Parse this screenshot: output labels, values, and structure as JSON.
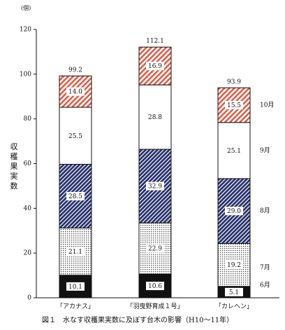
{
  "chart_data": {
    "type": "bar",
    "stacked": true,
    "categories": [
      "「アカナス」",
      "「羽曳野育成１号」",
      "「カレヘン」"
    ],
    "series": [
      {
        "name": "6月",
        "values": [
          10.1,
          10.6,
          5.1
        ],
        "pattern": "solid-black"
      },
      {
        "name": "7月",
        "values": [
          21.1,
          22.9,
          19.2
        ],
        "pattern": "fine-dots"
      },
      {
        "name": "8月",
        "values": [
          28.5,
          32.9,
          29.0
        ],
        "pattern": "dense-diagonal-navy"
      },
      {
        "name": "9月",
        "values": [
          25.5,
          28.8,
          25.1
        ],
        "pattern": "white"
      },
      {
        "name": "10月",
        "values": [
          14.0,
          16.9,
          15.5
        ],
        "pattern": "diagonal-red"
      }
    ],
    "totals": [
      "99.2",
      "112.1",
      "93.9"
    ],
    "segment_labels": [
      [
        "10.1",
        "21.1",
        "28.5",
        "25.5",
        "14.0"
      ],
      [
        "10.6",
        "22.9",
        "32.9",
        "28.8",
        "16.9"
      ],
      [
        "5.1",
        "19.2",
        "29.0",
        "25.1",
        "15.5"
      ]
    ],
    "ylabel": "収穫果実数",
    "yunit": "(個)",
    "ylim": [
      0,
      120
    ],
    "yticks": [
      "0",
      "20",
      "40",
      "60",
      "80",
      "100",
      "120"
    ],
    "grid": false,
    "legend": "right-side month labels beside last bar",
    "caption": "図１　水なす収穫果実数に及ぼす台木の影響（H10～11年）",
    "colors": {
      "red": "#e0553f",
      "navy": "#27306b",
      "black": "#111111",
      "dots": "#555555"
    }
  }
}
